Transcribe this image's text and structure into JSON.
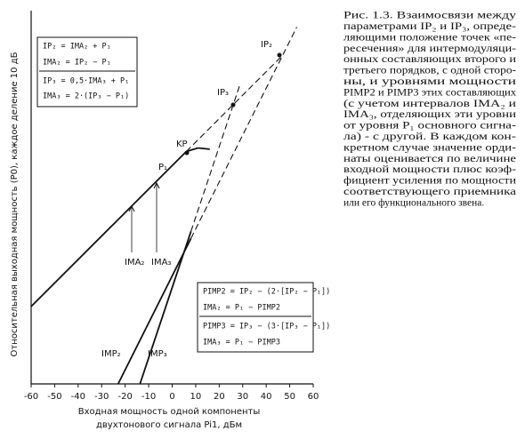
{
  "chart_data": {
    "type": "line",
    "x_label": [
      "Входная мощность одной компоненты",
      "двухтонового сигнала Pi1, дБм"
    ],
    "y_label": "Относительная выходная мощность (P0), каждое деление 10 дБ",
    "xlim": [
      -60,
      60
    ],
    "ylim": [
      -100,
      59
    ],
    "xticks": [
      -60,
      -50,
      -40,
      -30,
      -20,
      -10,
      0,
      10,
      20,
      30,
      40,
      50,
      60
    ],
    "series": [
      {
        "name": "P₁",
        "x": [
          -60,
          6,
          47
        ],
        "values": [
          -67,
          -1,
          40
        ],
        "dash": [
          false,
          true
        ],
        "color": "#111"
      },
      {
        "x": [
          6,
          11,
          16
        ],
        "values": [
          -1,
          0.5,
          0
        ],
        "dash": [
          false,
          false
        ],
        "color": "#111"
      },
      {
        "name": "IMP₂",
        "x": [
          -23,
          8,
          53
        ],
        "values": [
          -100,
          -38,
          52
        ],
        "dash": [
          false,
          true
        ],
        "color": "#111"
      },
      {
        "name": "IMP₃",
        "x": [
          -13.7,
          8,
          29
        ],
        "values": [
          -100,
          -35,
          28
        ],
        "dash": [
          false,
          true
        ],
        "color": "#111"
      }
    ],
    "annotations": [
      "IP₂",
      "IP₃",
      "KP",
      "IMA₂",
      "IMA₃"
    ],
    "formulas_top": [
      "IP₂ = IMA₂ + P₁",
      "IMA₂ = IP₂ − P₁",
      "IP₃ = 0,5·IMA₃ + P₁",
      "IMA₃ = 2·(IP₃ − P₁)"
    ],
    "formulas_bottom": [
      "PIMP2 = IP₂ − (2·[IP₂ − P₁])",
      "IMA₂ = P₁ − PIMP2",
      "PIMP3 = IP₃ − (3·[IP₃ − P₁])",
      "IMA₃ = P₁ − PIMP3"
    ],
    "caption": [
      "Рис. 1.3. Взаимосвязи между",
      "параметрами IP₂ и IP₃, опреде-",
      "ляющими положение точек «пе-",
      "ресечения» для интермодуляци-",
      "онных составляющих второго и",
      "третьего порядков, с одной сторо-",
      "ны, и уровнями мощности",
      "PIMP2 и PIMP3 этих составляющих",
      "(с учетом интервалов IMA₂ и",
      "IMA₃, отделяющих эти уровни",
      "от уровня P₁ основного сигна-",
      "ла) - с другой. В каждом кон-",
      "кретном случае значение орди-",
      "наты оценивается по величине",
      "входной мощности плюс коэф-",
      "фициент усиления по мощности",
      "соответствующего приемника",
      "или его функционального звена."
    ]
  }
}
